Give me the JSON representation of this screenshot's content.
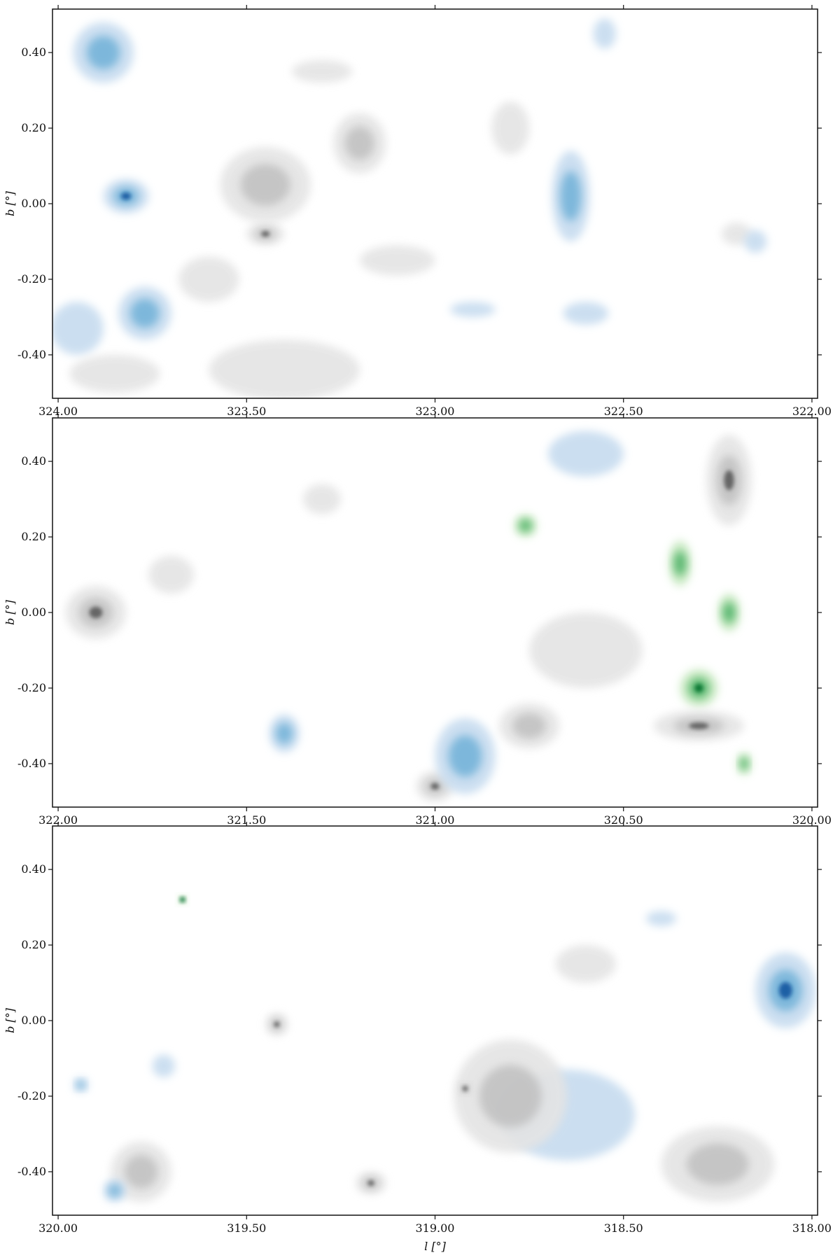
{
  "chart_data": {
    "type": "heatmap",
    "description_colormaps": {
      "gray": "#000000",
      "blue": "#08519c",
      "green": "#006d2c"
    },
    "panels": [
      {
        "xlim": [
          324.015,
          321.985
        ],
        "ylim": [
          -0.515,
          0.515
        ],
        "xticks": [
          "324.00",
          "323.50",
          "323.00",
          "322.50",
          "322.00"
        ],
        "yticks": [
          "0.40",
          "0.20",
          "0.00",
          "-0.20",
          "-0.40"
        ],
        "ylabel": "b [°]",
        "xlabel": ""
      },
      {
        "xlim": [
          322.015,
          319.985
        ],
        "ylim": [
          -0.515,
          0.515
        ],
        "xticks": [
          "322.00",
          "321.50",
          "321.00",
          "320.50",
          "320.00"
        ],
        "yticks": [
          "0.40",
          "0.20",
          "0.00",
          "-0.20",
          "-0.40"
        ],
        "ylabel": "b [°]",
        "xlabel": ""
      },
      {
        "xlim": [
          320.015,
          317.985
        ],
        "ylim": [
          -0.515,
          0.515
        ],
        "xticks": [
          "320.00",
          "319.50",
          "319.00",
          "318.50",
          "318.00"
        ],
        "yticks": [
          "0.40",
          "0.20",
          "0.00",
          "-0.20",
          "-0.40"
        ],
        "ylabel": "b [°]",
        "xlabel": "l [°]"
      }
    ],
    "grid": false,
    "legend": "none"
  }
}
